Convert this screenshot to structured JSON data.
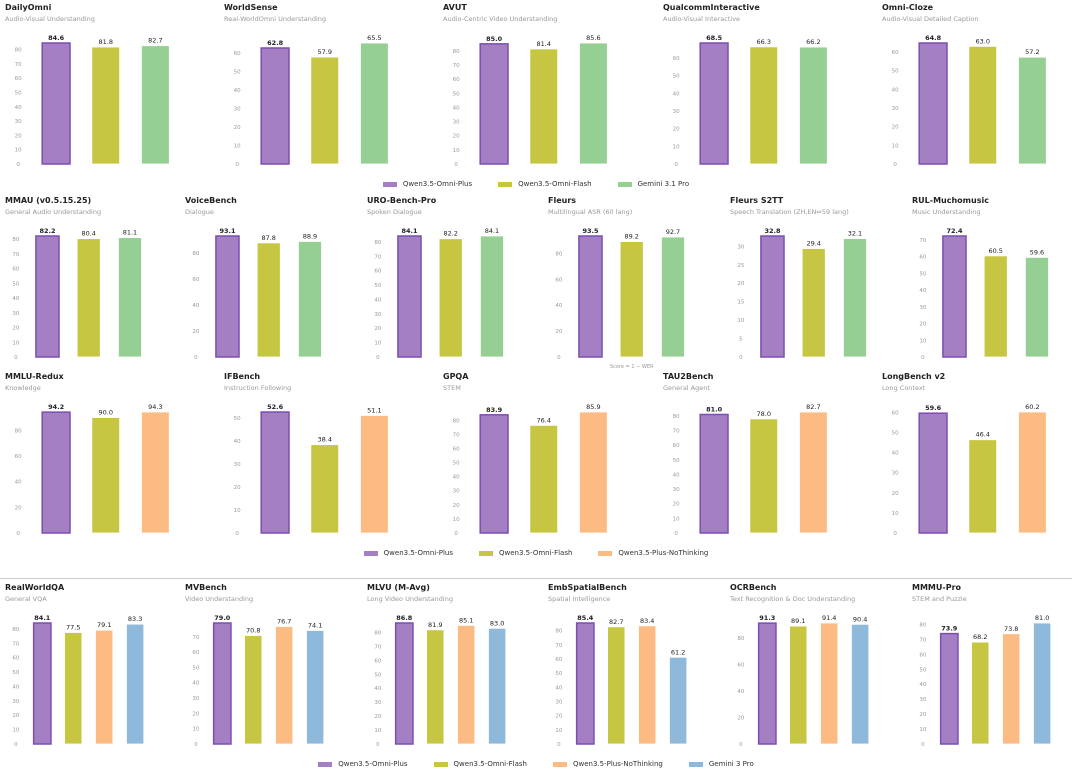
{
  "colors": {
    "Qwen3.5-Omni-Plus": "#a57fc4",
    "Qwen3.5-Omni-Plus-border": "#7b4fb0",
    "Qwen3.5-Omni-Flash": "#c6c642",
    "Gemini 3.1 Pro": "#95cf93",
    "Qwen3.5-Plus-NoThinking": "#fdbb84",
    "Gemini 3 Pro": "#8fb9da"
  },
  "chart_data": [
    {
      "type": "bar",
      "legend": [
        "Qwen3.5-Omni-Plus",
        "Qwen3.5-Omni-Flash",
        "Gemini 3.1 Pro"
      ],
      "legend_placement": "bottom",
      "panels": [
        {
          "title": "DailyOmni",
          "subtitle": "Audio-Visual Understanding",
          "values": [
            84.6,
            81.8,
            82.7
          ],
          "yticks": [
            "0",
            "10",
            "20",
            "30",
            "40",
            "50",
            "60",
            "70",
            "80"
          ]
        },
        {
          "title": "WorldSense",
          "subtitle": "Real-WorldOmni Understanding",
          "values": [
            62.8,
            57.9,
            65.5
          ],
          "yticks": [
            "0",
            "10",
            "20",
            "30",
            "40",
            "50",
            "60"
          ]
        },
        {
          "title": "AVUT",
          "subtitle": "Audio-Centric Video Understanding",
          "values": [
            85.0,
            81.4,
            85.6
          ],
          "yticks": [
            "0",
            "10",
            "20",
            "30",
            "40",
            "50",
            "60",
            "70",
            "80"
          ]
        },
        {
          "title": "QualcommInteractive",
          "subtitle": "Audio-Visual Interactive",
          "values": [
            68.5,
            66.3,
            66.2
          ],
          "yticks": [
            "0",
            "10",
            "20",
            "30",
            "40",
            "50",
            "60"
          ]
        },
        {
          "title": "Omni-Cloze",
          "subtitle": "Audio-Visual Detailed Caption",
          "values": [
            64.8,
            63.0,
            57.2
          ],
          "yticks": [
            "0",
            "10",
            "20",
            "30",
            "40",
            "50",
            "60"
          ]
        }
      ]
    },
    {
      "type": "bar",
      "legend": [],
      "panels": [
        {
          "title": "MMAU (v0.5.15.25)",
          "subtitle": "General Audio Understanding",
          "values": [
            82.2,
            80.4,
            81.1
          ],
          "yticks": [
            "0",
            "10",
            "20",
            "30",
            "40",
            "50",
            "60",
            "70",
            "80"
          ]
        },
        {
          "title": "VoiceBench",
          "subtitle": "Dialogue",
          "values": [
            93.1,
            87.8,
            88.9
          ],
          "yticks": [
            "0",
            "20",
            "40",
            "60",
            "80"
          ]
        },
        {
          "title": "URO-Bench-Pro",
          "subtitle": "Spoken Dialogue",
          "values": [
            84.1,
            82.2,
            84.1
          ],
          "yticks": [
            "0",
            "10",
            "20",
            "30",
            "40",
            "50",
            "60",
            "70",
            "80"
          ]
        },
        {
          "title": "Fleurs",
          "subtitle": "Multilingual ASR (60 lang)",
          "values": [
            93.5,
            89.2,
            92.7
          ],
          "yticks": [
            "0",
            "20",
            "40",
            "60",
            "80"
          ],
          "note": "Score = 1 − WER"
        },
        {
          "title": "Fleurs S2TT",
          "subtitle": "Speech Translation (ZH,EN⇔59 lang)",
          "values": [
            32.8,
            29.4,
            32.1
          ],
          "yticks": [
            "0",
            "5",
            "10",
            "15",
            "20",
            "25",
            "30"
          ]
        },
        {
          "title": "RUL-Muchomusic",
          "subtitle": "Music Understanding",
          "values": [
            72.4,
            60.5,
            59.6
          ],
          "yticks": [
            "0",
            "10",
            "20",
            "30",
            "40",
            "50",
            "60",
            "70"
          ]
        }
      ]
    },
    {
      "type": "bar",
      "legend": [
        "Qwen3.5-Omni-Plus",
        "Qwen3.5-Omni-Flash",
        "Qwen3.5-Plus-NoThinking"
      ],
      "legend_placement": "bottom",
      "panels": [
        {
          "title": "MMLU-Redux",
          "subtitle": "Knowledge",
          "values": [
            94.2,
            90.0,
            94.3
          ],
          "yticks": [
            "0",
            "20",
            "40",
            "60",
            "80"
          ]
        },
        {
          "title": "IFBench",
          "subtitle": "Instruction Following",
          "values": [
            52.6,
            38.4,
            51.1
          ],
          "yticks": [
            "0",
            "10",
            "20",
            "30",
            "40",
            "50"
          ]
        },
        {
          "title": "GPQA",
          "subtitle": "STEM",
          "values": [
            83.9,
            76.4,
            85.9
          ],
          "yticks": [
            "0",
            "10",
            "20",
            "30",
            "40",
            "50",
            "60",
            "70",
            "80"
          ]
        },
        {
          "title": "TAU2Bench",
          "subtitle": "General Agent",
          "values": [
            81.0,
            78.0,
            82.7
          ],
          "yticks": [
            "0",
            "10",
            "20",
            "30",
            "40",
            "50",
            "60",
            "70",
            "80"
          ]
        },
        {
          "title": "LongBench v2",
          "subtitle": "Long Context",
          "values": [
            59.6,
            46.4,
            60.2
          ],
          "yticks": [
            "0",
            "10",
            "20",
            "30",
            "40",
            "50",
            "60"
          ]
        }
      ]
    },
    {
      "type": "bar",
      "legend": [
        "Qwen3.5-Omni-Plus",
        "Qwen3.5-Omni-Flash",
        "Qwen3.5-Plus-NoThinking",
        "Gemini 3 Pro"
      ],
      "legend_placement": "bottom",
      "panels": [
        {
          "title": "RealWorldQA",
          "subtitle": "General VQA",
          "values": [
            84.1,
            77.5,
            79.1,
            83.3
          ],
          "yticks": [
            "0",
            "10",
            "20",
            "30",
            "40",
            "50",
            "60",
            "70",
            "80"
          ]
        },
        {
          "title": "MVBench",
          "subtitle": "Video Understanding",
          "values": [
            79.0,
            70.8,
            76.7,
            74.1
          ],
          "yticks": [
            "0",
            "10",
            "20",
            "30",
            "40",
            "50",
            "60",
            "70"
          ]
        },
        {
          "title": "MLVU (M-Avg)",
          "subtitle": "Long Video Understanding",
          "values": [
            86.8,
            81.9,
            85.1,
            83.0
          ],
          "yticks": [
            "0",
            "10",
            "20",
            "30",
            "40",
            "50",
            "60",
            "70",
            "80"
          ]
        },
        {
          "title": "EmbSpatialBench",
          "subtitle": "Spatial Intelligence",
          "values": [
            85.4,
            82.7,
            83.4,
            61.2
          ],
          "yticks": [
            "0",
            "10",
            "20",
            "30",
            "40",
            "50",
            "60",
            "70",
            "80"
          ]
        },
        {
          "title": "OCRBench",
          "subtitle": "Text Recognition & Doc Understanding",
          "values": [
            91.3,
            89.1,
            91.4,
            90.4
          ],
          "yticks": [
            "0",
            "20",
            "40",
            "60",
            "80"
          ]
        },
        {
          "title": "MMMU-Pro",
          "subtitle": "STEM and Puzzle",
          "values": [
            73.9,
            68.2,
            73.8,
            81.0
          ],
          "yticks": [
            "0",
            "10",
            "20",
            "30",
            "40",
            "50",
            "60",
            "70",
            "80"
          ]
        }
      ]
    }
  ]
}
